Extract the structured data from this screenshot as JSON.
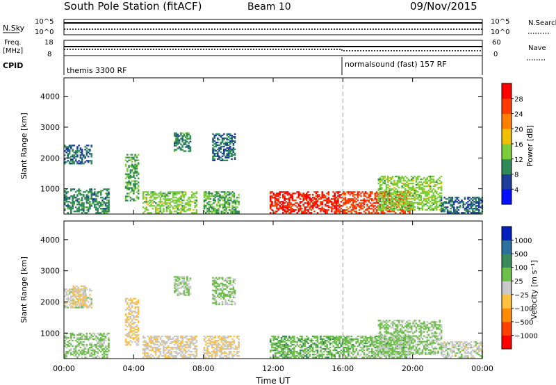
{
  "header": {
    "title": "South Pole Station (fitACF)",
    "beam": "Beam 10",
    "date": "09/Nov/2015"
  },
  "noise_panel": {
    "left_label": "N.Sky",
    "right_label": "N.Search",
    "left_ticks": [
      "10^5",
      "10^0"
    ],
    "right_ticks": [
      "10^5",
      "10^0"
    ]
  },
  "freq_panel": {
    "left_label_1": "Freq.",
    "left_label_2": "[MHz]",
    "right_label": "Nave",
    "left_ticks": [
      "18",
      "8"
    ],
    "right_ticks": [
      "60",
      "0"
    ]
  },
  "cpid_panel": {
    "label": "CPID",
    "segments": [
      {
        "start_hour": 0,
        "text": "themis 3300 RF"
      },
      {
        "start_hour": 16,
        "text": "normalsound (fast) 157 RF"
      }
    ]
  },
  "colors": {
    "power_scale": [
      "#0010ff",
      "#1e3c9a",
      "#2e8b57",
      "#7ccd3a",
      "#f0c000",
      "#ff8000",
      "#ff3c00",
      "#ff0000"
    ],
    "velocity_scale": [
      "#ff0000",
      "#ff4000",
      "#ff8c00",
      "#ffc040",
      "#c8c8c8",
      "#6cc04a",
      "#3a8a5a",
      "#2a70a0",
      "#0020c0"
    ],
    "ground_scatter": "#b4b4b4"
  },
  "chart_data": [
    {
      "type": "heatmap",
      "name": "power",
      "xlabel": "",
      "ylabel": "Slant Range [km]",
      "x_range_hours": [
        0,
        24
      ],
      "ylim": [
        180,
        4600
      ],
      "y_ticks": [
        "1000",
        "2000",
        "3000",
        "4000"
      ],
      "colorbar_label": "Power [dB]",
      "colorbar_ticks": [
        "28",
        "24",
        "20",
        "16",
        "12",
        "8",
        "4"
      ],
      "vmin": 0,
      "vmax": 32,
      "regions": [
        {
          "t0": 0.0,
          "t1": 1.6,
          "r0": 1800,
          "r1": 2400,
          "v": 8
        },
        {
          "t0": 0.0,
          "t1": 2.6,
          "r0": 200,
          "r1": 1000,
          "v": 10
        },
        {
          "t0": 3.5,
          "t1": 4.3,
          "r0": 600,
          "r1": 2100,
          "v": 12
        },
        {
          "t0": 4.5,
          "t1": 7.6,
          "r0": 200,
          "r1": 900,
          "v": 14
        },
        {
          "t0": 6.3,
          "t1": 7.2,
          "r0": 2200,
          "r1": 2800,
          "v": 10
        },
        {
          "t0": 8.0,
          "t1": 10.0,
          "r0": 200,
          "r1": 900,
          "v": 12
        },
        {
          "t0": 8.5,
          "t1": 9.8,
          "r0": 1900,
          "r1": 2800,
          "v": 8
        },
        {
          "t0": 11.8,
          "t1": 16.0,
          "r0": 200,
          "r1": 900,
          "v": 28
        },
        {
          "t0": 16.0,
          "t1": 19.8,
          "r0": 200,
          "r1": 900,
          "v": 26
        },
        {
          "t0": 18.0,
          "t1": 21.6,
          "r0": 300,
          "r1": 1400,
          "v": 14
        },
        {
          "t0": 21.6,
          "t1": 24.0,
          "r0": 200,
          "r1": 700,
          "v": 8
        }
      ]
    },
    {
      "type": "heatmap",
      "name": "velocity",
      "xlabel": "Time UT",
      "ylabel": "Slant Range [km]",
      "x_range_hours": [
        0,
        24
      ],
      "x_ticks": [
        "00:00",
        "04:00",
        "08:00",
        "12:00",
        "16:00",
        "20:00",
        "00:00"
      ],
      "ylim": [
        180,
        4600
      ],
      "y_ticks": [
        "1000",
        "2000",
        "3000",
        "4000"
      ],
      "colorbar_label": "Velocity [m s⁻¹]",
      "colorbar_ticks": [
        "1000",
        "500",
        "100",
        "25",
        "−25",
        "−100",
        "−500",
        "−1000"
      ],
      "vmin": -1200,
      "vmax": 1200,
      "regions": [
        {
          "t0": 0.0,
          "t1": 1.6,
          "r0": 1800,
          "r1": 2400,
          "v": 0
        },
        {
          "t0": 0.5,
          "t1": 1.3,
          "r0": 1900,
          "r1": 2500,
          "v": -150
        },
        {
          "t0": 0.0,
          "t1": 2.6,
          "r0": 200,
          "r1": 1000,
          "v": 200
        },
        {
          "t0": 3.5,
          "t1": 4.3,
          "r0": 600,
          "r1": 2100,
          "v": -180
        },
        {
          "t0": 4.5,
          "t1": 7.6,
          "r0": 200,
          "r1": 900,
          "v": -60
        },
        {
          "t0": 6.3,
          "t1": 7.2,
          "r0": 2200,
          "r1": 2800,
          "v": 150
        },
        {
          "t0": 8.0,
          "t1": 10.0,
          "r0": 200,
          "r1": 900,
          "v": -80
        },
        {
          "t0": 8.5,
          "t1": 9.8,
          "r0": 1900,
          "r1": 2800,
          "v": 150
        },
        {
          "t0": 11.8,
          "t1": 16.0,
          "r0": 200,
          "r1": 900,
          "v": 300
        },
        {
          "t0": 16.0,
          "t1": 19.8,
          "r0": 200,
          "r1": 900,
          "v": 250
        },
        {
          "t0": 18.0,
          "t1": 21.6,
          "r0": 300,
          "r1": 1400,
          "v": 180
        },
        {
          "t0": 21.6,
          "t1": 24.0,
          "r0": 200,
          "r1": 700,
          "v": 30
        }
      ]
    }
  ]
}
